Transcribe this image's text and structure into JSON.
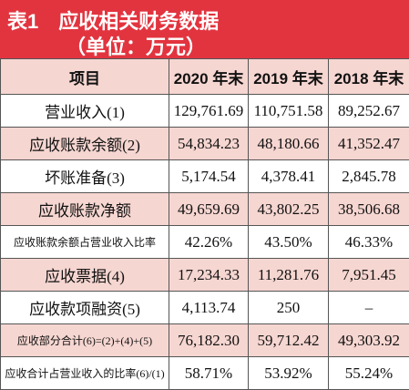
{
  "header": {
    "label": "表1",
    "title": "应收相关财务数据",
    "unit": "（单位：万元）"
  },
  "table": {
    "columns": [
      "项目",
      "2020 年末",
      "2019 年末",
      "2018 年末"
    ],
    "rows": [
      [
        "营业收入(1)",
        "129,761.69",
        "110,751.58",
        "89,252.67"
      ],
      [
        "应收账款余额(2)",
        "54,834.23",
        "48,180.66",
        "41,352.47"
      ],
      [
        "坏账准备(3)",
        "5,174.54",
        "4,378.41",
        "2,845.78"
      ],
      [
        "应收账款净额",
        "49,659.69",
        "43,802.25",
        "38,506.68"
      ],
      [
        "应收账款余额占营业收入比率",
        "42.26%",
        "43.50%",
        "46.33%"
      ],
      [
        "应收票据(4)",
        "17,234.33",
        "11,281.76",
        "7,951.45"
      ],
      [
        "应收款项融资(5)",
        "4,113.74",
        "250",
        "–"
      ],
      [
        "应收部分合计(6)=(2)+(4)+(5)",
        "76,182.30",
        "59,712.42",
        "49,303.92"
      ],
      [
        "应收合计占营业收入的比率(6)/(1)",
        "58.71%",
        "53.92%",
        "55.24%"
      ]
    ]
  }
}
